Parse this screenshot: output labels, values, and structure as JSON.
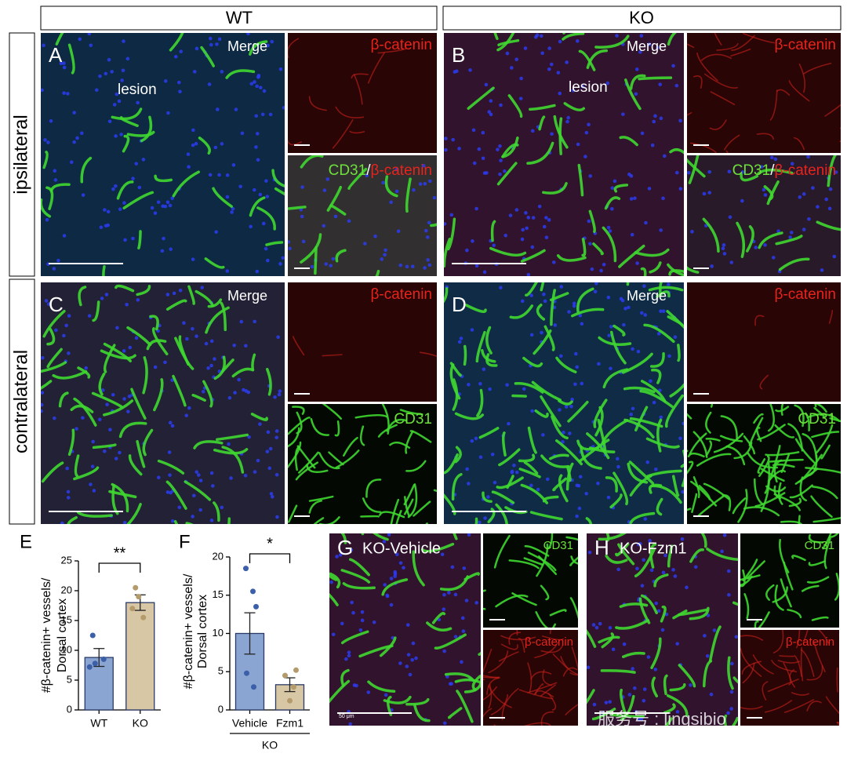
{
  "figure": {
    "columns": [
      "WT",
      "KO"
    ],
    "rows": [
      "ipsilateral",
      "contralateral"
    ],
    "panels": [
      {
        "letter": "A",
        "merge": "Merge",
        "note": "lesion",
        "top": "β-catenin",
        "bottom": [
          "CD31",
          "/",
          "β-catenin"
        ]
      },
      {
        "letter": "B",
        "merge": "Merge",
        "note": "lesion",
        "top": "β-catenin",
        "bottom": [
          "CD31",
          "/",
          "β-catenin"
        ]
      },
      {
        "letter": "C",
        "merge": "Merge",
        "top": "β-catenin",
        "bottom": [
          "CD31"
        ]
      },
      {
        "letter": "D",
        "merge": "Merge",
        "top": "β-catenin",
        "bottom": [
          "CD31"
        ]
      },
      {
        "letter": "G",
        "title": "KO-Vehicle",
        "top": "CD31",
        "bottom": [
          "β-catenin"
        ],
        "scale": "50 μm"
      },
      {
        "letter": "H",
        "title": "KO-Fzm1",
        "top": "CD31",
        "bottom": [
          "β-catenin"
        ]
      }
    ],
    "watermark": "服务号 : lingsibio"
  },
  "chart_data": [
    {
      "type": "bar",
      "panel_label": "E",
      "ylabel": [
        "#β-catenin+ vessels/",
        "Dorsal cortex"
      ],
      "categories": [
        "WT",
        "KO"
      ],
      "values": [
        8.8,
        18
      ],
      "errors": [
        1.5,
        1.3
      ],
      "points": [
        [
          12.5,
          8.5,
          7.8,
          7.2
        ],
        [
          20.5,
          19,
          17,
          15.5
        ]
      ],
      "colors": [
        "#8ba5d3",
        "#d8c7a4"
      ],
      "point_colors": [
        "#3b5fa8",
        "#b39b6c"
      ],
      "ylim": [
        0,
        25
      ],
      "yticks": [
        0,
        5,
        10,
        15,
        20,
        25
      ],
      "significance": "**"
    },
    {
      "type": "bar",
      "panel_label": "F",
      "ylabel": [
        "#β-catenin+ vessels/",
        "Dorsal cortex"
      ],
      "categories": [
        "Vehicle",
        "Fzm1"
      ],
      "values": [
        10,
        3.3
      ],
      "errors": [
        2.7,
        0.9
      ],
      "points": [
        [
          18.5,
          15.5,
          13.5,
          4.8,
          3
        ],
        [
          5.2,
          4.5,
          3,
          1.2
        ]
      ],
      "colors": [
        "#8ba5d3",
        "#d8c7a4"
      ],
      "point_colors": [
        "#3b5fa8",
        "#b39b6c"
      ],
      "ylim": [
        0,
        20
      ],
      "yticks": [
        0,
        5,
        10,
        15,
        20
      ],
      "significance": "*",
      "group_label": "KO"
    }
  ]
}
